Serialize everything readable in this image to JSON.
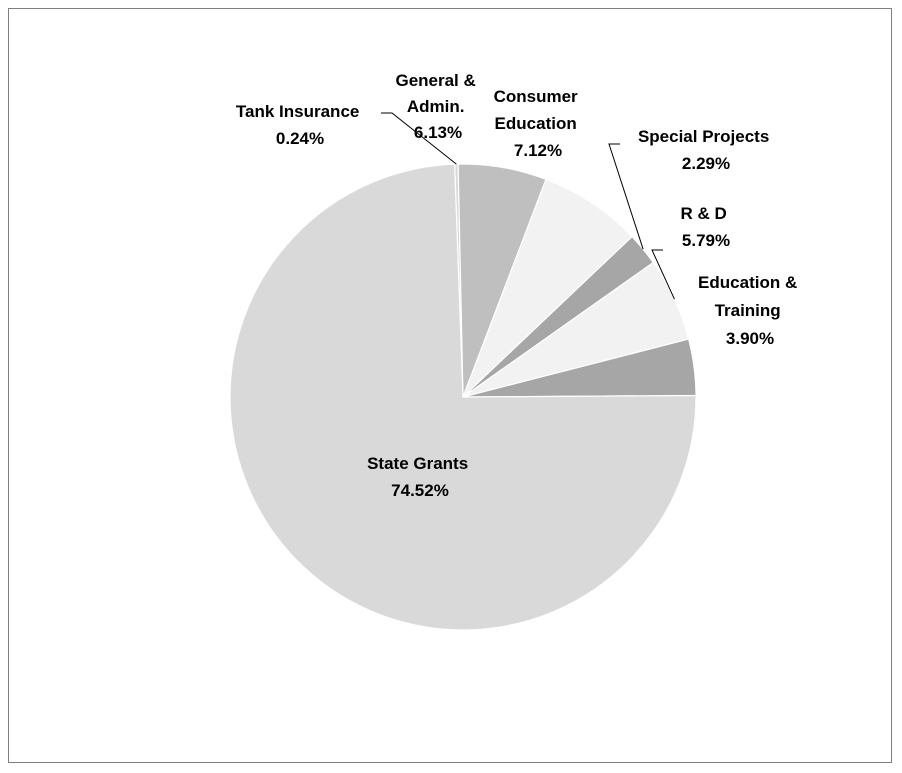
{
  "chart_data": {
    "type": "pie",
    "title": "",
    "slices": [
      {
        "name": "Tank Insurance",
        "value": 0.24,
        "label": "0.24%",
        "color": "#d9d9d9"
      },
      {
        "name": "General & Admin.",
        "value": 6.13,
        "label": "6.13%",
        "color": "#bfbfbf"
      },
      {
        "name": "Consumer Education",
        "value": 7.12,
        "label": "7.12%",
        "color": "#f2f2f2"
      },
      {
        "name": "Special Projects",
        "value": 2.29,
        "label": "2.29%",
        "color": "#a6a6a6"
      },
      {
        "name": "R & D",
        "value": 5.79,
        "label": "5.79%",
        "color": "#f2f2f2"
      },
      {
        "name": "Education & Training",
        "value": 3.9,
        "label": "3.90%",
        "color": "#a6a6a6"
      },
      {
        "name": "State Grants",
        "value": 74.52,
        "label": "74.52%",
        "color": "#d9d9d9"
      }
    ],
    "start_angle_deg": 0,
    "direction": "clockwise",
    "legend": "none"
  }
}
